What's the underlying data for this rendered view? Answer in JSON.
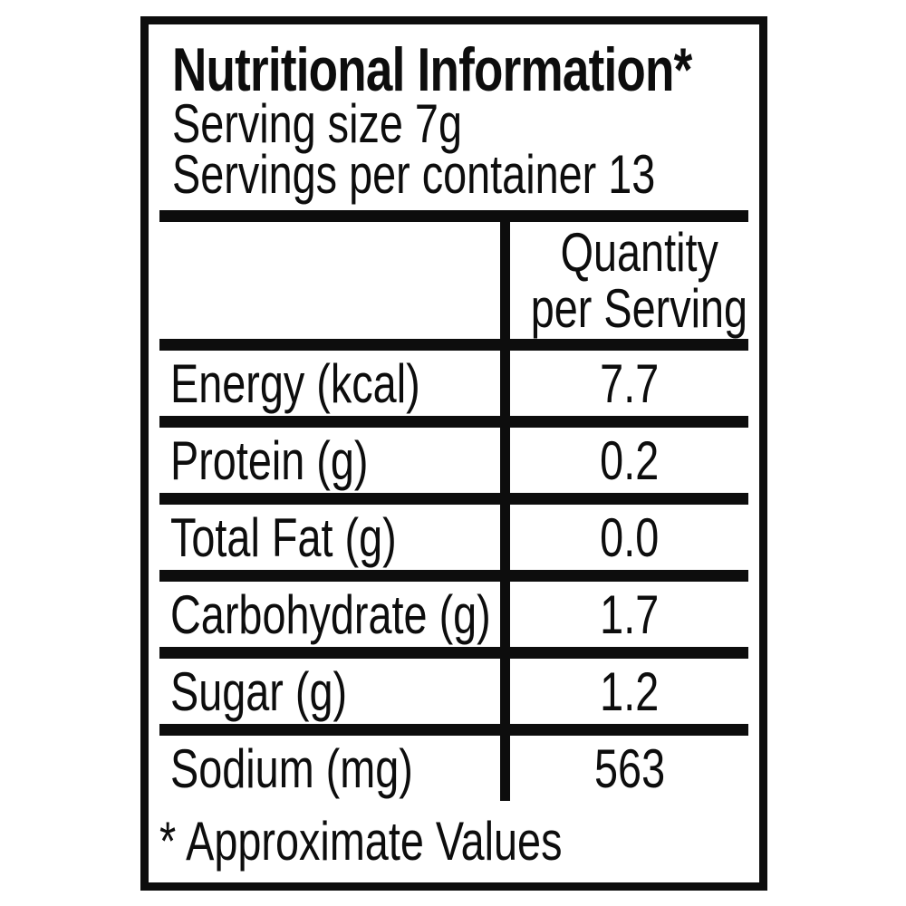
{
  "label": {
    "title": "Nutritional Information*",
    "serving_size_line": "Serving size 7g",
    "servings_per_container_line": "Servings per container 13",
    "table": {
      "value_column_header_line1": "Quantity",
      "value_column_header_line2": "per Serving",
      "rows": [
        {
          "nutrient": "Energy (kcal)",
          "quantity": "7.7"
        },
        {
          "nutrient": "Protein (g)",
          "quantity": "0.2"
        },
        {
          "nutrient": "Total Fat (g)",
          "quantity": "0.0"
        },
        {
          "nutrient": "Carbohydrate (g)",
          "quantity": "1.7"
        },
        {
          "nutrient": "Sugar (g)",
          "quantity": "1.2"
        },
        {
          "nutrient": "Sodium (mg)",
          "quantity": "563"
        }
      ]
    },
    "footnote_marker": "*",
    "footnote_text": "Approximate Values"
  },
  "colors": {
    "ink": "#0d0d0d",
    "background": "#ffffff"
  }
}
